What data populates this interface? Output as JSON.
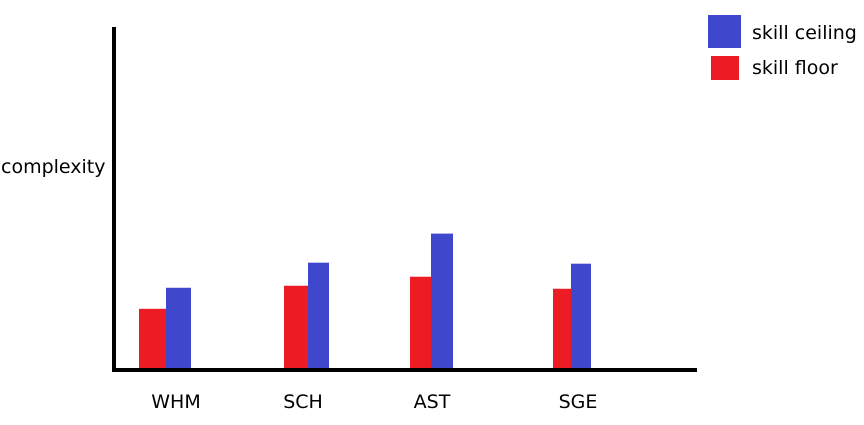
{
  "chart_data": {
    "type": "bar",
    "title": "",
    "xlabel": "",
    "ylabel": "complexity",
    "categories": [
      "WHM",
      "SCH",
      "AST",
      "SGE"
    ],
    "series": [
      {
        "name": "skill floor",
        "color": "#ed1c24",
        "values": [
          60,
          83,
          92,
          80
        ]
      },
      {
        "name": "skill ceiling",
        "color": "#3f48cc",
        "values": [
          81,
          106,
          135,
          105
        ]
      }
    ],
    "ylim": [
      0,
      340
    ],
    "grid": false,
    "legend_position": "top-right"
  }
}
